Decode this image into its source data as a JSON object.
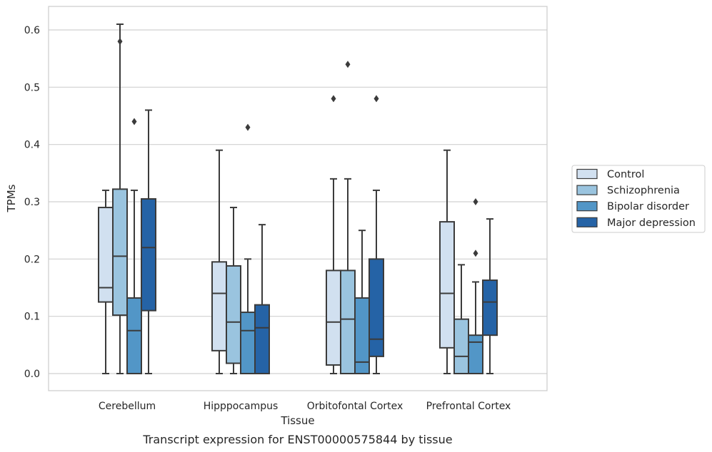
{
  "caption": "Transcript expression for ENST00000575844 by tissue",
  "chart_data": {
    "type": "box",
    "xlabel": "Tissue",
    "ylabel": "TPMs",
    "ylim": [
      -0.03,
      0.64
    ],
    "yticks": [
      "0.0",
      "0.1",
      "0.2",
      "0.3",
      "0.4",
      "0.5",
      "0.6"
    ],
    "grid": "horizontal",
    "legend_position": "right",
    "categories": [
      "Cerebellum",
      "Hipppocampus",
      "Orbitofontal Cortex",
      "Prefrontal Cortex"
    ],
    "series": [
      {
        "name": "Control",
        "color": "#d1e0f0",
        "boxes": [
          {
            "min": 0.0,
            "q1": 0.125,
            "median": 0.15,
            "q3": 0.29,
            "max": 0.32,
            "outliers": []
          },
          {
            "min": 0.0,
            "q1": 0.04,
            "median": 0.14,
            "q3": 0.195,
            "max": 0.39,
            "outliers": []
          },
          {
            "min": 0.0,
            "q1": 0.015,
            "median": 0.09,
            "q3": 0.18,
            "max": 0.34,
            "outliers": [
              0.48
            ]
          },
          {
            "min": 0.0,
            "q1": 0.045,
            "median": 0.14,
            "q3": 0.265,
            "max": 0.39,
            "outliers": []
          }
        ]
      },
      {
        "name": "Schizophrenia",
        "color": "#9ac4df",
        "boxes": [
          {
            "min": 0.0,
            "q1": 0.102,
            "median": 0.205,
            "q3": 0.322,
            "max": 0.61,
            "outliers": [
              0.58
            ]
          },
          {
            "min": 0.0,
            "q1": 0.018,
            "median": 0.09,
            "q3": 0.188,
            "max": 0.29,
            "outliers": []
          },
          {
            "min": 0.0,
            "q1": 0.0,
            "median": 0.095,
            "q3": 0.18,
            "max": 0.34,
            "outliers": [
              0.54
            ]
          },
          {
            "min": 0.0,
            "q1": 0.0,
            "median": 0.03,
            "q3": 0.095,
            "max": 0.19,
            "outliers": []
          }
        ]
      },
      {
        "name": "Bipolar disorder",
        "color": "#5296c7",
        "boxes": [
          {
            "min": 0.0,
            "q1": 0.0,
            "median": 0.075,
            "q3": 0.132,
            "max": 0.32,
            "outliers": [
              0.44
            ]
          },
          {
            "min": 0.0,
            "q1": 0.0,
            "median": 0.075,
            "q3": 0.107,
            "max": 0.2,
            "outliers": [
              0.43
            ]
          },
          {
            "min": 0.0,
            "q1": 0.0,
            "median": 0.02,
            "q3": 0.132,
            "max": 0.25,
            "outliers": []
          },
          {
            "min": 0.0,
            "q1": 0.0,
            "median": 0.055,
            "q3": 0.067,
            "max": 0.16,
            "outliers": [
              0.3,
              0.21
            ]
          }
        ]
      },
      {
        "name": "Major depression",
        "color": "#2563a6",
        "boxes": [
          {
            "min": 0.0,
            "q1": 0.11,
            "median": 0.22,
            "q3": 0.305,
            "max": 0.46,
            "outliers": []
          },
          {
            "min": 0.0,
            "q1": 0.0,
            "median": 0.08,
            "q3": 0.12,
            "max": 0.26,
            "outliers": []
          },
          {
            "min": 0.0,
            "q1": 0.03,
            "median": 0.06,
            "q3": 0.2,
            "max": 0.32,
            "outliers": [
              0.48
            ]
          },
          {
            "min": 0.0,
            "q1": 0.067,
            "median": 0.125,
            "q3": 0.163,
            "max": 0.27,
            "outliers": []
          }
        ]
      }
    ]
  }
}
